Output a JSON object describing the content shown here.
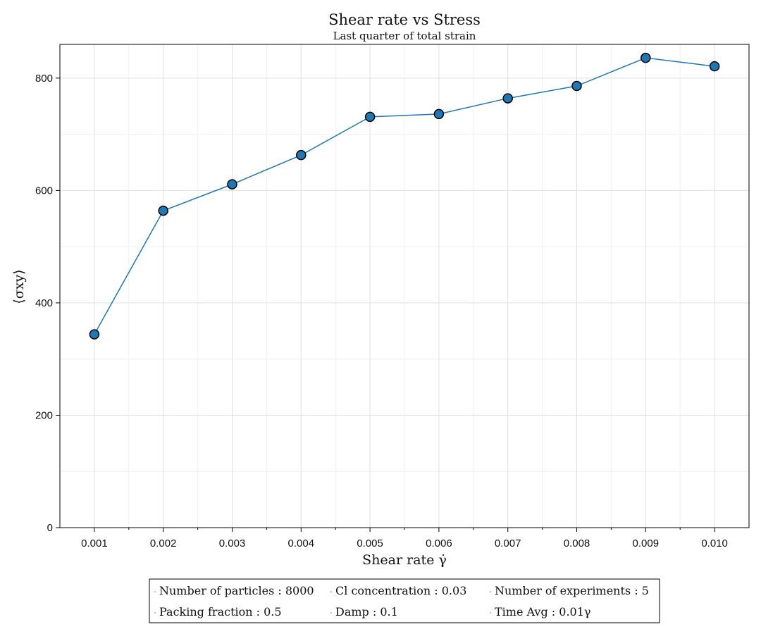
{
  "chart_data": {
    "type": "line",
    "title": "Shear rate vs Stress",
    "subtitle": "Last quarter of total strain",
    "xlabel": "Shear rate γ̇",
    "ylabel": "⟨σxy⟩",
    "xlim": [
      0.0005,
      0.0105
    ],
    "ylim": [
      0,
      860
    ],
    "x_ticks": [
      0.001,
      0.002,
      0.003,
      0.004,
      0.005,
      0.006,
      0.007,
      0.008,
      0.009,
      0.01
    ],
    "x_tick_labels": [
      "0.001",
      "0.002",
      "0.003",
      "0.004",
      "0.005",
      "0.006",
      "0.007",
      "0.008",
      "0.009",
      "0.010"
    ],
    "y_ticks": [
      0,
      200,
      400,
      600,
      800
    ],
    "y_tick_labels": [
      "0",
      "200",
      "400",
      "600",
      "800"
    ],
    "grid": true,
    "series": [
      {
        "x": [
          0.001,
          0.002,
          0.003,
          0.004,
          0.005,
          0.006,
          0.007,
          0.008,
          0.009,
          0.01
        ],
        "y": [
          344,
          564,
          611,
          663,
          731,
          736,
          764,
          786,
          836,
          821
        ],
        "color": "#1f77b4",
        "marker_edge_color": "#000000"
      }
    ],
    "legend_placement": "bottom-center",
    "legend_entries": [
      "Number of particles : 8000",
      "Cl concentration : 0.03",
      "Number of experiments : 5",
      "Packing fraction : 0.5",
      "Damp : 0.1",
      "Time Avg : 0.01γ"
    ]
  }
}
